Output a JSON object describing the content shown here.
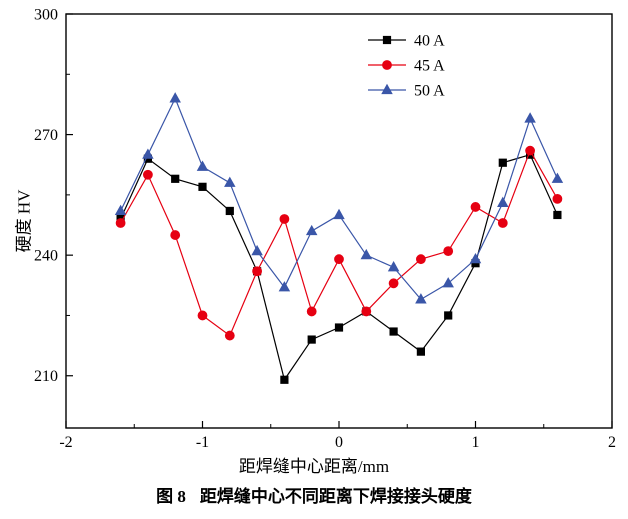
{
  "chart_data": {
    "type": "line",
    "title": "",
    "xlabel": "距焊缝中心距离/mm",
    "ylabel": "硬度 HV",
    "caption_label": "图 8",
    "caption_text": "距焊缝中心不同距离下焊接接头硬度",
    "xlim": [
      -2,
      2
    ],
    "ylim": [
      197,
      300
    ],
    "x_ticks": [
      -2,
      -1,
      0,
      1,
      2
    ],
    "x_minor_ticks": [
      -1.5,
      -0.5,
      0.5,
      1.5
    ],
    "y_ticks": [
      210,
      240,
      270,
      300
    ],
    "y_minor_ticks": [
      225,
      255,
      285
    ],
    "grid": false,
    "legend_position": "top-center-right",
    "x": [
      -1.6,
      -1.4,
      -1.2,
      -1.0,
      -0.8,
      -0.6,
      -0.4,
      -0.2,
      0,
      0.2,
      0.4,
      0.6,
      0.8,
      1.0,
      1.2,
      1.4,
      1.6
    ],
    "series": [
      {
        "name": "40 A",
        "marker": "square",
        "color": "#000000",
        "values": [
          249,
          264,
          259,
          257,
          251,
          236,
          209,
          219,
          222,
          226,
          221,
          216,
          225,
          238,
          263,
          265,
          250
        ]
      },
      {
        "name": "45 A",
        "marker": "circle",
        "color": "#e60012",
        "values": [
          248,
          260,
          245,
          225,
          220,
          236,
          249,
          226,
          239,
          226,
          233,
          239,
          241,
          252,
          248,
          266,
          254
        ]
      },
      {
        "name": "50 A",
        "marker": "triangle",
        "color": "#3a56a8",
        "values": [
          251,
          265,
          279,
          262,
          258,
          241,
          232,
          246,
          250,
          240,
          237,
          229,
          233,
          239,
          253,
          274,
          259
        ]
      }
    ]
  }
}
